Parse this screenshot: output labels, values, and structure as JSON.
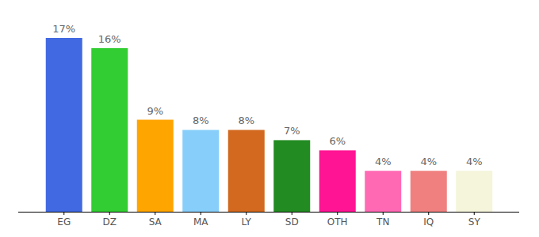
{
  "chart_data": {
    "type": "bar",
    "categories": [
      "EG",
      "DZ",
      "SA",
      "MA",
      "LY",
      "SD",
      "OTH",
      "TN",
      "IQ",
      "SY"
    ],
    "values": [
      17,
      16,
      9,
      8,
      8,
      7,
      6,
      4,
      4,
      4
    ],
    "value_labels": [
      "17%",
      "16%",
      "9%",
      "8%",
      "8%",
      "7%",
      "6%",
      "4%",
      "4%",
      "4%"
    ],
    "colors": [
      "#4169e1",
      "#32cd32",
      "#ffa500",
      "#87cefa",
      "#d2691e",
      "#228b22",
      "#ff1493",
      "#ff69b4",
      "#f08080",
      "#f5f5dc"
    ],
    "ylim": [
      0,
      17
    ],
    "data_labels": true,
    "tick_labels": "x",
    "grid": false
  }
}
